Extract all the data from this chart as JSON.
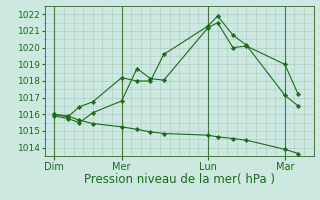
{
  "background_color": "#cde8e0",
  "grid_color": "#aaccc4",
  "line_color": "#1a6b1a",
  "marker_color": "#1a6b1a",
  "xlabel": "Pression niveau de la mer( hPa )",
  "xlabel_fontsize": 8.5,
  "ylim": [
    1013.5,
    1022.5
  ],
  "yticks": [
    1014,
    1015,
    1016,
    1017,
    1018,
    1019,
    1020,
    1021,
    1022
  ],
  "ytick_fontsize": 6.5,
  "xtick_fontsize": 7,
  "day_labels": [
    "Dim",
    "Mer",
    "Lun",
    "Mar"
  ],
  "day_positions": [
    0.5,
    4.0,
    8.5,
    12.5
  ],
  "xlim": [
    0,
    14
  ],
  "series": [
    {
      "x": [
        0.5,
        1.2,
        1.8,
        2.5,
        4.0,
        4.8,
        5.5,
        6.2,
        8.5,
        9.0,
        9.8,
        10.5,
        12.5,
        13.2
      ],
      "y": [
        1015.9,
        1015.75,
        1015.5,
        1016.1,
        1016.8,
        1018.75,
        1018.15,
        1018.05,
        1021.2,
        1021.5,
        1020.0,
        1020.1,
        1019.0,
        1017.2
      ]
    },
    {
      "x": [
        0.5,
        1.2,
        1.8,
        2.5,
        4.0,
        4.8,
        5.5,
        6.2,
        8.5,
        9.0,
        9.8,
        10.5,
        12.5,
        13.2
      ],
      "y": [
        1016.0,
        1015.85,
        1016.45,
        1016.75,
        1018.2,
        1018.0,
        1018.0,
        1019.6,
        1021.3,
        1021.9,
        1020.75,
        1020.15,
        1017.15,
        1016.5
      ]
    },
    {
      "x": [
        0.5,
        1.2,
        1.8,
        2.5,
        4.0,
        4.8,
        5.5,
        6.2,
        8.5,
        9.0,
        9.8,
        10.5,
        12.5,
        13.2
      ],
      "y": [
        1016.0,
        1015.9,
        1015.65,
        1015.45,
        1015.25,
        1015.1,
        1014.95,
        1014.85,
        1014.75,
        1014.65,
        1014.55,
        1014.45,
        1013.9,
        1013.65
      ]
    }
  ],
  "vline_positions": [
    0.5,
    4.0,
    8.5,
    12.5
  ],
  "vline_color": "#3d7a3d",
  "minor_grid_every": 0.5
}
